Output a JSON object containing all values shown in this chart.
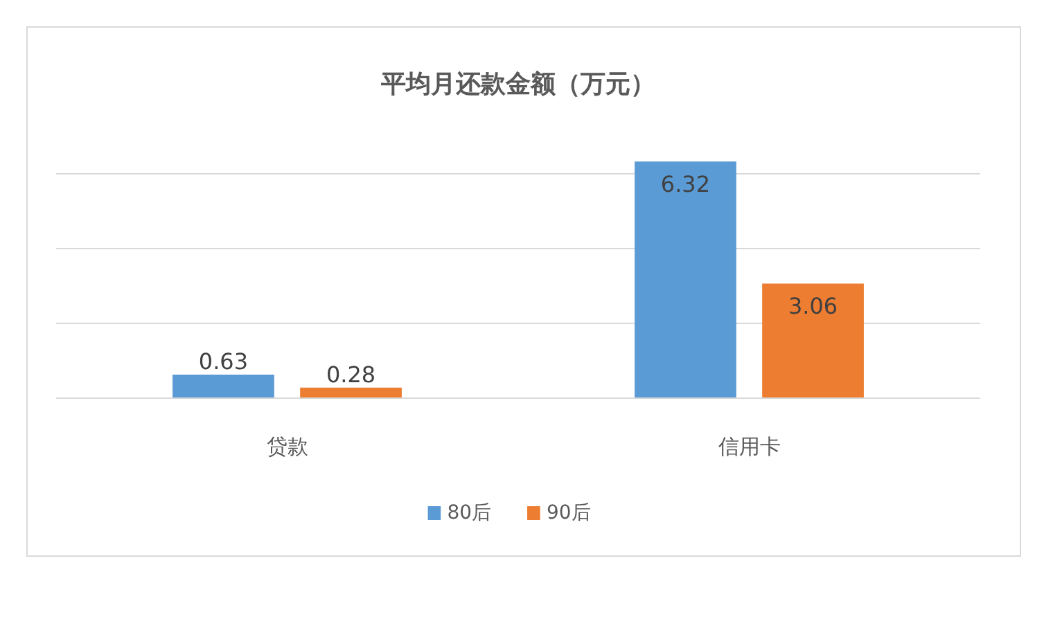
{
  "chart_data": {
    "type": "bar",
    "title": "平均月还款金额（万元）",
    "categories": [
      "贷款",
      "信用卡"
    ],
    "series": [
      {
        "name": "80后",
        "color": "#5b9bd5",
        "values": [
          0.63,
          6.32
        ]
      },
      {
        "name": "90后",
        "color": "#ed7d31",
        "values": [
          0.28,
          3.06
        ]
      }
    ],
    "tick_labels": "x",
    "grid": "y",
    "legend": "bottom",
    "data_labels": true
  }
}
